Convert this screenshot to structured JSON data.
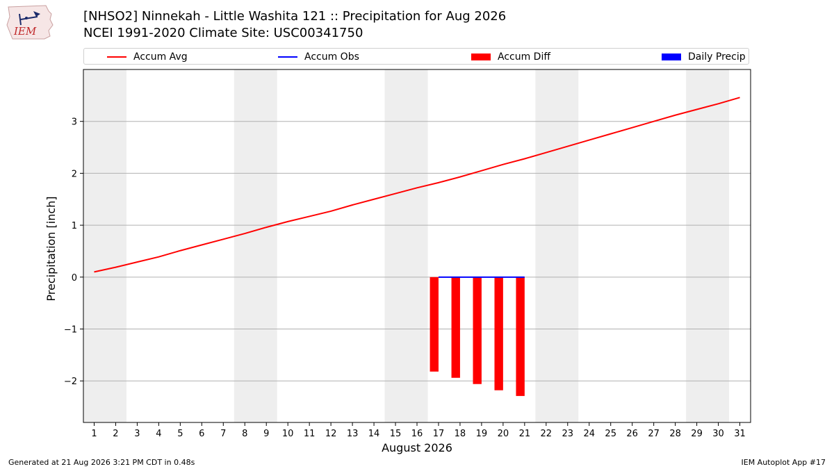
{
  "header": {
    "logo_text": "IEM",
    "title_line1": "[NHSO2] Ninnekah - Little Washita 121 :: Precipitation for Aug 2026",
    "title_line2": "NCEI 1991-2020 Climate Site: USC00341750"
  },
  "footer": {
    "left": "Generated at 21 Aug 2026 3:21 PM CDT in 0.48s",
    "right": "IEM Autoplot App #17"
  },
  "legend": {
    "items": [
      {
        "label": "Accum Avg",
        "kind": "line",
        "color": "#ff0000"
      },
      {
        "label": "Accum Obs",
        "kind": "line",
        "color": "#0000ff"
      },
      {
        "label": "Accum Diff",
        "kind": "box",
        "color": "#ff0000"
      },
      {
        "label": "Daily Precip",
        "kind": "box",
        "color": "#0000ff"
      }
    ]
  },
  "chart_data": {
    "type": "line+bar",
    "xlabel": "August 2026",
    "ylabel": "Precipitation [inch]",
    "xlim": [
      0.5,
      31.5
    ],
    "ylim": [
      -2.8,
      4.0
    ],
    "x_ticks": [
      1,
      2,
      3,
      4,
      5,
      6,
      7,
      8,
      9,
      10,
      11,
      12,
      13,
      14,
      15,
      16,
      17,
      18,
      19,
      20,
      21,
      22,
      23,
      24,
      25,
      26,
      27,
      28,
      29,
      30,
      31
    ],
    "y_ticks": [
      -2,
      -1,
      0,
      1,
      2,
      3
    ],
    "y_tick_labels": [
      "−2",
      "−1",
      "0",
      "1",
      "2",
      "3"
    ],
    "grid": "horizontal",
    "weekend_shading": [
      [
        0.5,
        2.5
      ],
      [
        7.5,
        9.5
      ],
      [
        14.5,
        16.5
      ],
      [
        21.5,
        23.5
      ],
      [
        28.5,
        30.5
      ]
    ],
    "shade_color": "#eeeeee",
    "series": [
      {
        "name": "Accum Avg",
        "kind": "line",
        "color": "#ff0000",
        "x": [
          1,
          2,
          3,
          4,
          5,
          6,
          7,
          8,
          9,
          10,
          11,
          12,
          13,
          14,
          15,
          16,
          17,
          18,
          19,
          20,
          21,
          22,
          23,
          24,
          25,
          26,
          27,
          28,
          29,
          30,
          31
        ],
        "values": [
          0.1,
          0.19,
          0.29,
          0.39,
          0.51,
          0.62,
          0.73,
          0.84,
          0.96,
          1.07,
          1.17,
          1.27,
          1.39,
          1.5,
          1.61,
          1.72,
          1.82,
          1.93,
          2.05,
          2.17,
          2.28,
          2.4,
          2.52,
          2.64,
          2.76,
          2.88,
          3.0,
          3.12,
          3.23,
          3.34,
          3.46
        ]
      },
      {
        "name": "Accum Obs",
        "kind": "line",
        "color": "#0000ff",
        "x": [
          17,
          18,
          19,
          20,
          21
        ],
        "values": [
          0.0,
          0.0,
          0.0,
          0.0,
          0.0
        ]
      },
      {
        "name": "Accum Diff",
        "kind": "bar",
        "color": "#ff0000",
        "x": [
          17,
          18,
          19,
          20,
          21
        ],
        "values": [
          -1.82,
          -1.94,
          -2.06,
          -2.18,
          -2.29
        ]
      },
      {
        "name": "Daily Precip",
        "kind": "bar",
        "color": "#0000ff",
        "x": [
          17,
          18,
          19,
          20,
          21
        ],
        "values": [
          0.0,
          0.0,
          0.0,
          0.0,
          0.0
        ]
      }
    ]
  }
}
